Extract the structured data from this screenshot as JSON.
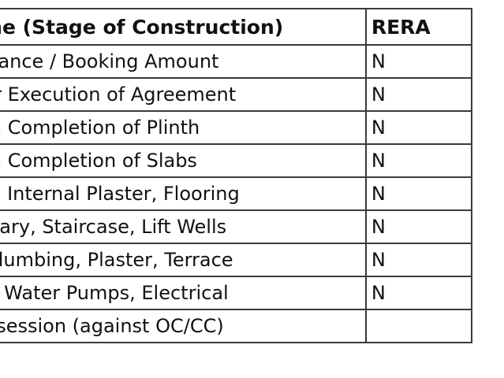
{
  "table": {
    "headers": {
      "stage": "one (Stage of Construction)",
      "rera": "RERA"
    },
    "rows": [
      {
        "stage": "dvance / Booking Amount",
        "rera": "N"
      },
      {
        "stage": "ter Execution of Agreement",
        "rera": "N"
      },
      {
        "stage": "On Completion of Plinth",
        "rera": "N"
      },
      {
        "stage": "On Completion of Slabs",
        "rera": "N"
      },
      {
        "stage": "lls, Internal Plaster, Flooring",
        "rera": "N"
      },
      {
        "stage": "nitary, Staircase, Lift Wells",
        "rera": "N"
      },
      {
        "stage": ". Plumbing, Plaster, Terrace",
        "rera": "N"
      },
      {
        "stage": "ts, Water Pumps, Electrical",
        "rera": "N"
      },
      {
        "stage": "ossession (against OC/CC)",
        "rera": ""
      }
    ]
  }
}
